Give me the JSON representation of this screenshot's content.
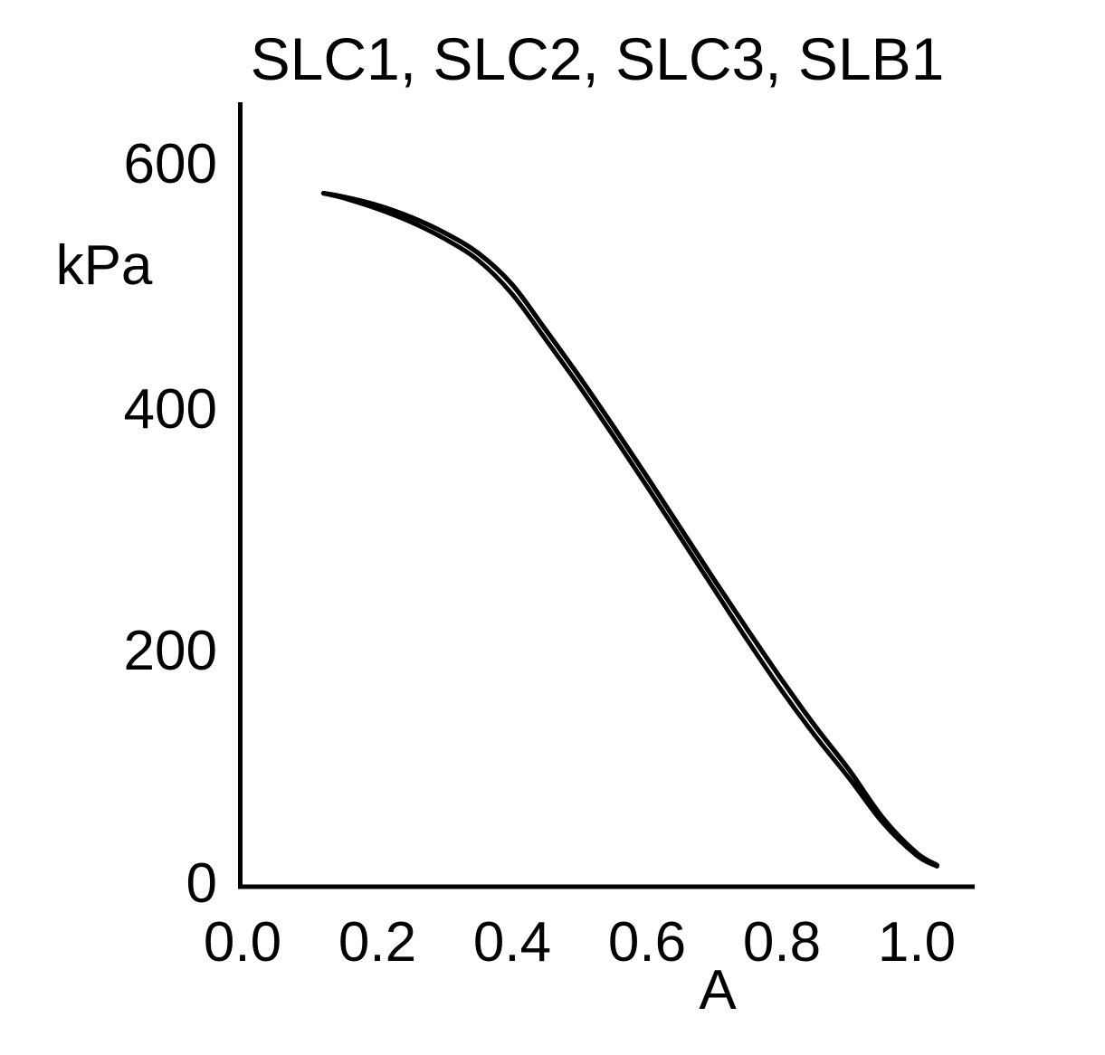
{
  "figure": {
    "background": "#ffffff",
    "foreground": "#000000"
  },
  "chart_data": {
    "type": "line",
    "title": "SLC1, SLC2, SLC3, SLB1",
    "xlabel": "A",
    "ylabel": "kPa",
    "xlim": [
      0.0,
      1.09
    ],
    "ylim": [
      0,
      655
    ],
    "grid": false,
    "legend_position": "none",
    "tick_marks": false,
    "x_tick_labels": [
      "0.0",
      "0.2",
      "0.4",
      "0.6",
      "0.8",
      "1.0"
    ],
    "y_tick_labels": [
      "0",
      "200",
      "400",
      "600"
    ],
    "x": [
      0.12,
      0.15,
      0.2,
      0.25,
      0.3,
      0.35,
      0.4,
      0.45,
      0.5,
      0.55,
      0.6,
      0.65,
      0.7,
      0.75,
      0.8,
      0.85,
      0.9,
      0.95,
      1.0,
      1.03
    ],
    "series": [
      {
        "name": "SLC1",
        "color": "#000000",
        "values": [
          577,
          574,
          567,
          557,
          544,
          527,
          501,
          463,
          424,
          383,
          341,
          298,
          255,
          213,
          172,
          133,
          97,
          57,
          28,
          18
        ]
      },
      {
        "name": "SLC2",
        "color": "#000000",
        "values": [
          577,
          574,
          567,
          557,
          544,
          527,
          501,
          463,
          424,
          383,
          341,
          298,
          255,
          213,
          172,
          133,
          97,
          57,
          28,
          18
        ]
      },
      {
        "name": "SLC3",
        "color": "#000000",
        "values": [
          577,
          574,
          567,
          557,
          544,
          527,
          501,
          463,
          424,
          383,
          341,
          298,
          255,
          213,
          172,
          133,
          97,
          57,
          28,
          18
        ]
      },
      {
        "name": "SLB1",
        "color": "#000000",
        "values": [
          577,
          573,
          564,
          553,
          539,
          521,
          493,
          455,
          416,
          375,
          333,
          290,
          247,
          204,
          163,
          125,
          90,
          53,
          26,
          17
        ]
      }
    ],
    "note": "SLC1, SLC2 and SLC3 overlap as the upper curve; SLB1 runs slightly below it, converging with it at both ends"
  }
}
